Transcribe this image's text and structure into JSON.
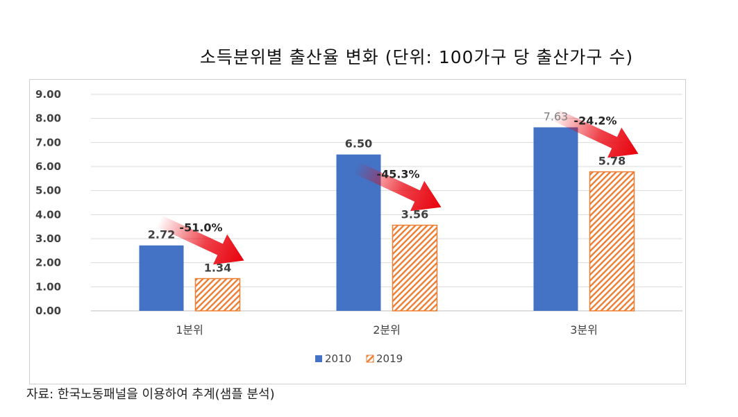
{
  "title": "소득분위별 출산율 변화 (단위: 100가구 당 출산가구 수)",
  "source": "자료: 한국노동패널을 이용하여 추계(샘플 분석)",
  "colors": {
    "s2010": "#4472C4",
    "s2019": "#ED7D31",
    "arrow": "#E8000B",
    "grid": "#d9d9d9"
  },
  "chart_data": {
    "type": "bar",
    "title": "소득분위별 출산율 변화 (단위: 100가구 당 출산가구 수)",
    "categories": [
      "1분위",
      "2분위",
      "3분위"
    ],
    "series": [
      {
        "name": "2010",
        "values": [
          2.72,
          6.5,
          7.63
        ],
        "labels": [
          "2.72",
          "6.50",
          "7.63"
        ],
        "pattern": "solid"
      },
      {
        "name": "2019",
        "values": [
          1.34,
          3.56,
          5.78
        ],
        "labels": [
          "1.34",
          "3.56",
          "5.78"
        ],
        "pattern": "hatched"
      }
    ],
    "changes": [
      "-51.0%",
      "-45.3%",
      "-24.2%"
    ],
    "yticks": [
      "0.00",
      "1.00",
      "2.00",
      "3.00",
      "4.00",
      "5.00",
      "6.00",
      "7.00",
      "8.00",
      "9.00"
    ],
    "ylim": [
      0,
      9
    ],
    "grid": true,
    "legend": "bottom",
    "xlabel": "",
    "ylabel": ""
  }
}
